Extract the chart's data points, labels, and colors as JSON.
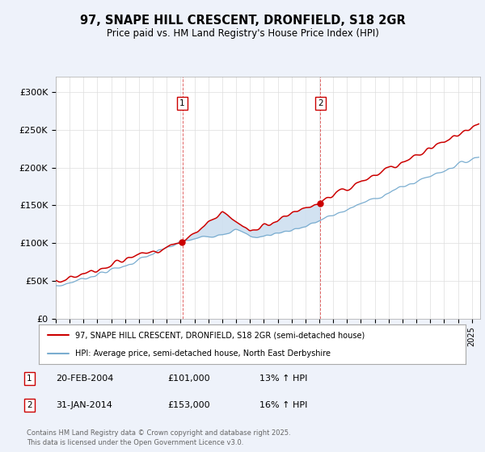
{
  "title": "97, SNAPE HILL CRESCENT, DRONFIELD, S18 2GR",
  "subtitle": "Price paid vs. HM Land Registry's House Price Index (HPI)",
  "ylim": [
    0,
    320000
  ],
  "yticks": [
    0,
    50000,
    100000,
    150000,
    200000,
    250000,
    300000
  ],
  "ytick_labels": [
    "£0",
    "£50K",
    "£100K",
    "£150K",
    "£200K",
    "£250K",
    "£300K"
  ],
  "legend_line1": "97, SNAPE HILL CRESCENT, DRONFIELD, S18 2GR (semi-detached house)",
  "legend_line2": "HPI: Average price, semi-detached house, North East Derbyshire",
  "line1_color": "#cc0000",
  "line2_color": "#7aadd0",
  "annotation1_label": "1",
  "annotation1_date": "20-FEB-2004",
  "annotation1_price": "£101,000",
  "annotation1_hpi": "13% ↑ HPI",
  "annotation2_label": "2",
  "annotation2_date": "31-JAN-2014",
  "annotation2_price": "£153,000",
  "annotation2_hpi": "16% ↑ HPI",
  "footer": "Contains HM Land Registry data © Crown copyright and database right 2025.\nThis data is licensed under the Open Government Licence v3.0.",
  "bg_color": "#eef2fa",
  "plot_bg": "#ffffff",
  "shade_color": "#cddff0",
  "date1": 2004.125,
  "date2": 2014.083,
  "dot1_val": 101000,
  "dot2_val": 153000
}
